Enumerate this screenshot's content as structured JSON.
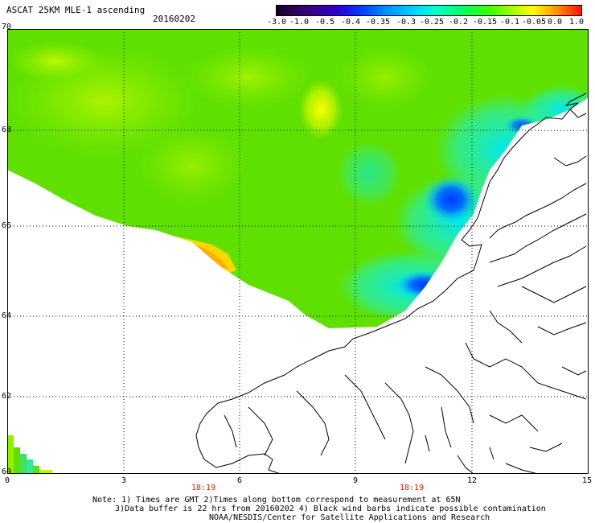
{
  "header": {
    "title": "ASCAT 25KM MLE-1 ascending",
    "date": "20160202"
  },
  "colorbar": {
    "labels": [
      "-3.0",
      "-1.0",
      "-0.5",
      "-0.4",
      "-0.35",
      "-0.3",
      "-0.25",
      "-0.2",
      "-0.15",
      "-0.1",
      "-0.05",
      "0.0",
      "1.0"
    ]
  },
  "axes": {
    "y_labels": [
      "70",
      "68",
      "66",
      "64",
      "62",
      "60"
    ],
    "x_labels": [
      "0",
      "3",
      "6",
      "9",
      "12",
      "15"
    ],
    "time_labels": [
      "18:19",
      "18:19"
    ]
  },
  "footer": {
    "note_line1": "Note: 1) Times are GMT 2)Times along bottom correspond to measurement at 65N",
    "note_line2": "3)Data buffer is 22 hrs from 20160202 4) Black wind barbs indicate possible contamination",
    "note_line3": "NOAA/NESDIS/Center for Satellite Applications and Research"
  },
  "colors": {
    "swath_green": "#5be000",
    "swath_cyan": "#00e8e0",
    "swath_blue": "#0058ff",
    "swath_yellow": "#f0f000",
    "swath_orange": "#ffa000",
    "coast": "#000000",
    "time_label": "#d62000"
  }
}
